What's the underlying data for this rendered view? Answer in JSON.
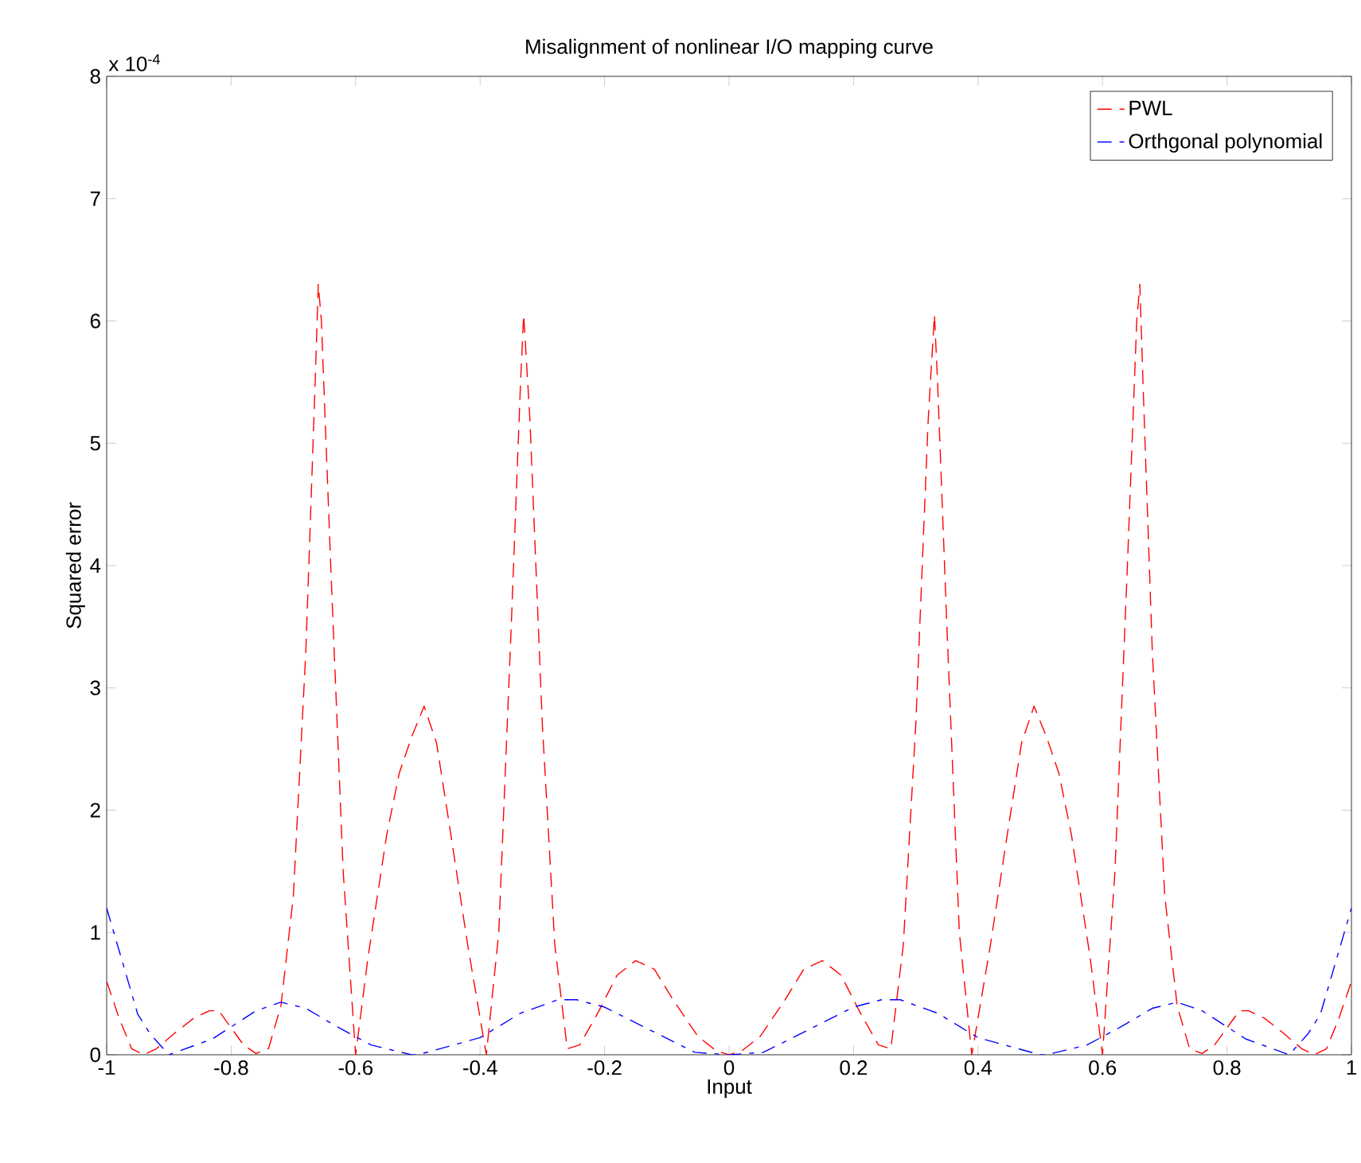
{
  "chart_data": {
    "type": "line",
    "title": "Misalignment of nonlinear I/O mapping curve",
    "xlabel": "Input",
    "ylabel": "Squared error",
    "annotations": [
      "x 10$^{-4}$"
    ],
    "xlim": [
      -1,
      1
    ],
    "ylim": [
      0,
      8
    ],
    "xticks": [
      -1,
      -0.8,
      -0.6,
      -0.4,
      -0.2,
      0,
      0.2,
      0.4,
      0.6,
      0.8,
      1
    ],
    "yticks": [
      0,
      1,
      2,
      3,
      4,
      5,
      6,
      7,
      8
    ],
    "legend": "top right",
    "grid": false,
    "series": [
      {
        "name": "PWL",
        "color": "#ff0000",
        "line_style": "dashed",
        "x": [
          -1,
          -0.98,
          -0.96,
          -0.94,
          -0.92,
          -0.89,
          -0.86,
          -0.835,
          -0.82,
          -0.8,
          -0.78,
          -0.76,
          -0.74,
          -0.72,
          -0.7,
          -0.68,
          -0.665,
          -0.66,
          -0.655,
          -0.64,
          -0.62,
          -0.6,
          -0.58,
          -0.55,
          -0.53,
          -0.51,
          -0.49,
          -0.47,
          -0.45,
          -0.42,
          -0.39,
          -0.37,
          -0.35,
          -0.335,
          -0.33,
          -0.32,
          -0.3,
          -0.28,
          -0.26,
          -0.24,
          -0.21,
          -0.18,
          -0.15,
          -0.12,
          -0.09,
          -0.05,
          -0.02,
          0,
          0.02,
          0.05,
          0.09,
          0.12,
          0.15,
          0.18,
          0.21,
          0.24,
          0.26,
          0.28,
          0.3,
          0.32,
          0.33,
          0.335,
          0.35,
          0.37,
          0.39,
          0.42,
          0.45,
          0.47,
          0.49,
          0.51,
          0.53,
          0.55,
          0.58,
          0.6,
          0.62,
          0.64,
          0.655,
          0.66,
          0.665,
          0.68,
          0.7,
          0.72,
          0.74,
          0.76,
          0.78,
          0.8,
          0.82,
          0.835,
          0.86,
          0.89,
          0.92,
          0.94,
          0.96,
          0.98,
          1
        ],
        "values": [
          0.6,
          0.3,
          0.05,
          0,
          0.05,
          0.18,
          0.3,
          0.36,
          0.36,
          0.22,
          0.08,
          0.01,
          0.05,
          0.4,
          1.3,
          3.3,
          5.5,
          6.3,
          6,
          4,
          1.5,
          0,
          0.8,
          1.8,
          2.3,
          2.6,
          2.85,
          2.55,
          1.9,
          0.9,
          0,
          1,
          3.5,
          5.5,
          6.05,
          5.2,
          2.7,
          0.9,
          0.05,
          0.08,
          0.35,
          0.65,
          0.77,
          0.7,
          0.45,
          0.15,
          0.03,
          0,
          0.03,
          0.15,
          0.45,
          0.7,
          0.77,
          0.65,
          0.35,
          0.08,
          0.05,
          0.9,
          2.7,
          5.2,
          6.05,
          5.5,
          3.5,
          1,
          0,
          0.9,
          1.9,
          2.55,
          2.85,
          2.6,
          2.3,
          1.8,
          0.8,
          0,
          1.5,
          4,
          6,
          6.3,
          5.5,
          3.3,
          1.3,
          0.4,
          0.05,
          0.01,
          0.08,
          0.22,
          0.36,
          0.36,
          0.3,
          0.18,
          0.05,
          0,
          0.05,
          0.3,
          0.6
        ]
      },
      {
        "name": "Orthgonal polynomial",
        "color": "#0000ff",
        "line_style": "dashdot",
        "x": [
          -1,
          -0.95,
          -0.93,
          -0.9,
          -0.83,
          -0.76,
          -0.72,
          -0.68,
          -0.63,
          -0.575,
          -0.51,
          -0.5,
          -0.4,
          -0.335,
          -0.275,
          -0.245,
          -0.2,
          -0.13,
          -0.055,
          0,
          0.055,
          0.13,
          0.2,
          0.245,
          0.275,
          0.335,
          0.4,
          0.5,
          0.51,
          0.575,
          0.63,
          0.68,
          0.72,
          0.76,
          0.83,
          0.9,
          0.93,
          0.95,
          1
        ],
        "values": [
          1.2,
          0.33,
          0.17,
          0,
          0.13,
          0.36,
          0.43,
          0.38,
          0.23,
          0.08,
          0,
          0,
          0.14,
          0.34,
          0.45,
          0.45,
          0.39,
          0.21,
          0.02,
          0,
          0.02,
          0.21,
          0.39,
          0.45,
          0.45,
          0.34,
          0.14,
          0,
          0,
          0.08,
          0.23,
          0.38,
          0.43,
          0.36,
          0.13,
          0,
          0.17,
          0.33,
          1.2
        ]
      }
    ]
  }
}
